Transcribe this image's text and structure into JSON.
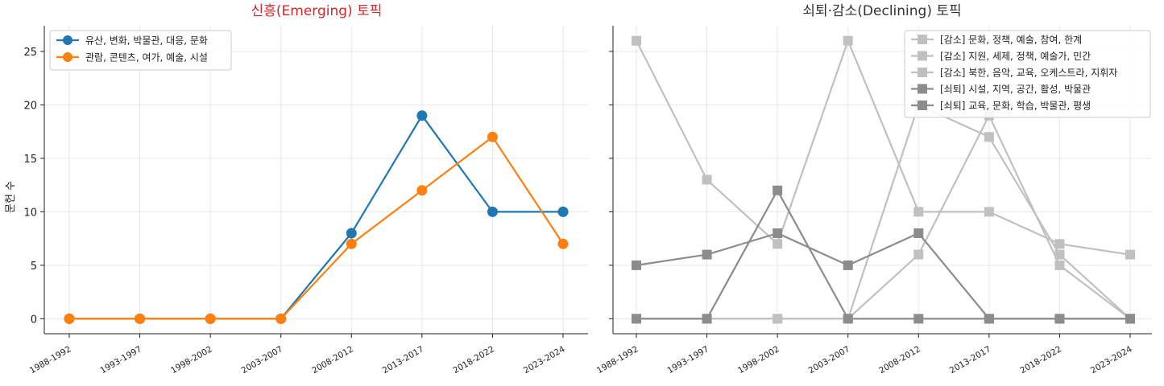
{
  "figure": {
    "background": "#ffffff"
  },
  "chart_data": [
    {
      "type": "line",
      "title": "신흥(Emerging) 토픽",
      "title_color": "#d62728",
      "xlabel": "",
      "ylabel": "문헌 수",
      "categories": [
        "1988-1992",
        "1993-1997",
        "1998-2002",
        "2003-2007",
        "2008-2012",
        "2013-2017",
        "2018-2022",
        "2023-2024"
      ],
      "yticks": [
        0,
        5,
        10,
        15,
        20,
        25
      ],
      "ylim": [
        -1.4,
        27.4
      ],
      "grid": true,
      "legend": "top-left",
      "marker": "circle",
      "series": [
        {
          "name": "유산, 변화, 박물관, 대응, 문화",
          "color": "#1f77b4",
          "values": [
            0,
            0,
            0,
            0,
            8,
            19,
            10,
            10
          ]
        },
        {
          "name": "관람, 콘텐츠, 여가, 예술, 시설",
          "color": "#ff7f0e",
          "values": [
            0,
            0,
            0,
            0,
            7,
            12,
            17,
            7
          ]
        }
      ]
    },
    {
      "type": "line",
      "title": "쇠퇴·감소(Declining) 토픽",
      "title_color": "#333333",
      "xlabel": "",
      "ylabel": "",
      "categories": [
        "1988-1992",
        "1993-1997",
        "1998-2002",
        "2003-2007",
        "2008-2012",
        "2013-2017",
        "2018-2022",
        "2023-2024"
      ],
      "ylim": [
        -1.4,
        27.4
      ],
      "grid": true,
      "legend": "top-right",
      "marker": "square",
      "series": [
        {
          "name": "[감소] 문화, 정책, 예술, 참여, 한계",
          "color": "#c0c0c0",
          "values": [
            26,
            13,
            7,
            26,
            10,
            10,
            7,
            6
          ]
        },
        {
          "name": "[감소] 지원, 세제, 정책, 예술가, 민간",
          "color": "#c0c0c0",
          "values": [
            0,
            0,
            0,
            0,
            20,
            17,
            6,
            0
          ]
        },
        {
          "name": "[감소] 북한, 음악, 교육, 오케스트라, 지휘자",
          "color": "#c0c0c0",
          "values": [
            0,
            0,
            0,
            0,
            6,
            19,
            5,
            0
          ]
        },
        {
          "name": "[쇠퇴] 시설, 지역, 공간, 활성, 박물관",
          "color": "#8c8c8c",
          "values": [
            5,
            6,
            8,
            5,
            8,
            0,
            0,
            0
          ]
        },
        {
          "name": "[쇠퇴] 교육, 문화, 학습, 박물관, 평생",
          "color": "#8c8c8c",
          "values": [
            0,
            0,
            12,
            0,
            0,
            0,
            0,
            0
          ]
        }
      ]
    }
  ]
}
